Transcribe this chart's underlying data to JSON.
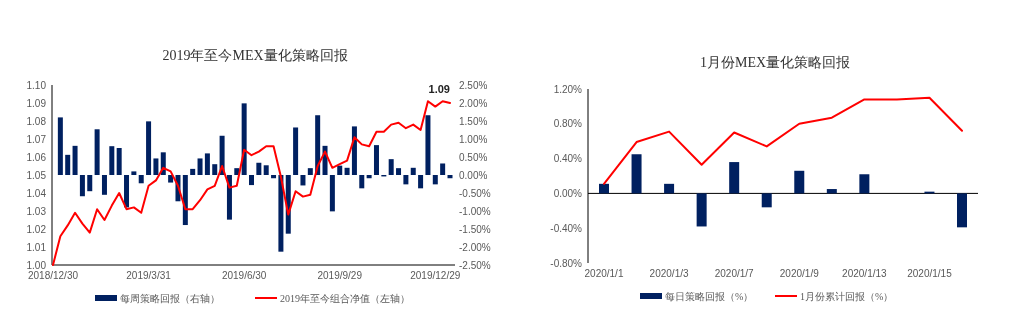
{
  "chart_data": [
    {
      "type": "bar",
      "title": "2019年至今MEX量化策略回报",
      "legend": "bottom",
      "categories": [
        "2018/12/30",
        null,
        null,
        null,
        null,
        null,
        null,
        null,
        null,
        null,
        null,
        null,
        null,
        "2019/3/31",
        null,
        null,
        null,
        null,
        null,
        null,
        null,
        null,
        null,
        null,
        null,
        null,
        "2019/6/30",
        null,
        null,
        null,
        null,
        null,
        null,
        null,
        null,
        null,
        null,
        null,
        null,
        "2019/9/29",
        null,
        null,
        null,
        null,
        null,
        null,
        null,
        null,
        null,
        null,
        null,
        null,
        "2019/12/29",
        null,
        null
      ],
      "series": [
        {
          "name": "每周策略回报（右轴）",
          "color": "#002060",
          "axis": "y2",
          "values": [
            null,
            1.6,
            0.56,
            0.81,
            -0.59,
            -0.45,
            1.27,
            -0.55,
            0.8,
            0.75,
            -0.9,
            0.1,
            -0.23,
            1.49,
            0.46,
            0.63,
            -0.21,
            -0.73,
            -1.39,
            0.17,
            0.46,
            0.6,
            0.3,
            1.09,
            -1.24,
            0.19,
            1.99,
            -0.28,
            0.34,
            0.27,
            -0.09,
            -2.13,
            -1.63,
            1.32,
            -0.29,
            0.19,
            1.66,
            0.81,
            -1.01,
            0.26,
            0.2,
            1.35,
            -0.37,
            -0.09,
            0.83,
            -0.04,
            0.44,
            0.19,
            -0.26,
            0.2,
            -0.37,
            1.66,
            -0.26,
            0.32,
            -0.09
          ]
        },
        {
          "type": "line",
          "name": "2019年至今组合净值（左轴）",
          "color": "#ff0000",
          "values": [
            1.0,
            1.016,
            1.022,
            1.029,
            1.023,
            1.018,
            1.031,
            1.025,
            1.033,
            1.04,
            1.031,
            1.032,
            1.029,
            1.044,
            1.047,
            1.054,
            1.052,
            1.044,
            1.031,
            1.031,
            1.036,
            1.042,
            1.044,
            1.055,
            1.043,
            1.044,
            1.064,
            1.061,
            1.063,
            1.066,
            1.066,
            1.049,
            1.028,
            1.041,
            1.038,
            1.039,
            1.055,
            1.063,
            1.054,
            1.056,
            1.058,
            1.071,
            1.067,
            1.066,
            1.074,
            1.074,
            1.078,
            1.079,
            1.076,
            1.078,
            1.075,
            1.091,
            1.088,
            1.091,
            1.09
          ]
        }
      ],
      "ylim": [
        1.0,
        1.1
      ],
      "yticks": [
        {
          "value": 1.0,
          "label": "1.00"
        },
        {
          "value": 1.01,
          "label": "1.01"
        },
        {
          "value": 1.02,
          "label": "1.02"
        },
        {
          "value": 1.03,
          "label": "1.03"
        },
        {
          "value": 1.04,
          "label": "1.04"
        },
        {
          "value": 1.05,
          "label": "1.05"
        },
        {
          "value": 1.06,
          "label": "1.06"
        },
        {
          "value": 1.07,
          "label": "1.07"
        },
        {
          "value": 1.08,
          "label": "1.08"
        },
        {
          "value": 1.09,
          "label": "1.09"
        },
        {
          "value": 1.1,
          "label": "1.10"
        }
      ],
      "y2lim": [
        -2.5,
        2.5
      ],
      "y2ticks": [
        {
          "value": 2.5,
          "label": "2.50%"
        },
        {
          "value": 2.0,
          "label": "2.00%"
        },
        {
          "value": 1.5,
          "label": "1.50%"
        },
        {
          "value": 1.0,
          "label": "1.00%"
        },
        {
          "value": 0.5,
          "label": "0.50%"
        },
        {
          "value": 0,
          "label": "0.00%"
        },
        {
          "value": -0.5,
          "label": "-0.50%"
        },
        {
          "value": -1.0,
          "label": "-1.00%"
        },
        {
          "value": -1.5,
          "label": "-1.50%"
        },
        {
          "value": -2.0,
          "label": "-2.00%"
        },
        {
          "value": -2.5,
          "label": "-2.50%"
        }
      ],
      "annotations": [
        {
          "text": "1.09",
          "y": 1.09
        }
      ]
    },
    {
      "type": "bar",
      "title": "1月份MEX量化策略回报",
      "legend": "bottom",
      "categories": [
        "2020/1/1",
        null,
        "2020/1/3",
        null,
        "2020/1/7",
        null,
        "2020/1/9",
        null,
        "2020/1/13",
        null,
        "2020/1/15",
        null
      ],
      "series": [
        {
          "name": "每日策略回报（%）",
          "color": "#002060",
          "values": [
            0.11,
            0.45,
            0.11,
            -0.38,
            0.36,
            -0.16,
            0.26,
            0.05,
            0.22,
            0,
            0.02,
            -0.39
          ]
        },
        {
          "type": "line",
          "name": "1月份累计回报（%）",
          "color": "#ff0000",
          "values": [
            0.11,
            0.59,
            0.71,
            0.33,
            0.7,
            0.54,
            0.8,
            0.87,
            1.08,
            1.08,
            1.1,
            0.72
          ]
        }
      ],
      "ylim": [
        -0.8,
        1.2
      ],
      "yticks": [
        {
          "value": 1.2,
          "label": "1.20%"
        },
        {
          "value": 0.8,
          "label": "0.80%"
        },
        {
          "value": 0.4,
          "label": "0.40%"
        },
        {
          "value": 0,
          "label": "0.00%"
        },
        {
          "value": -0.4,
          "label": "-0.40%"
        },
        {
          "value": -0.8,
          "label": "-0.80%"
        }
      ]
    }
  ]
}
